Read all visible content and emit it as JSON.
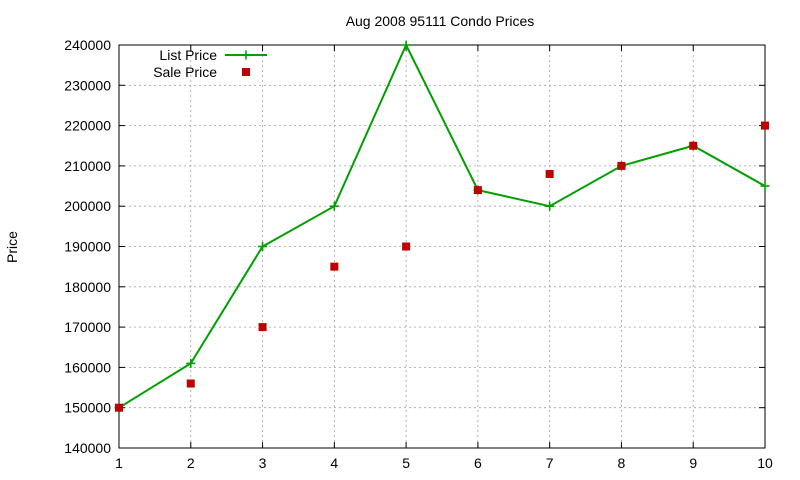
{
  "chart_data": {
    "type": "line",
    "title": "Aug 2008 95111 Condo Prices",
    "xlabel": "",
    "ylabel": "Price",
    "x": [
      1,
      2,
      3,
      4,
      5,
      6,
      7,
      8,
      9,
      10
    ],
    "xlim": [
      1,
      10
    ],
    "ylim": [
      140000,
      240000
    ],
    "xticks": [
      "1",
      "2",
      "3",
      "4",
      "5",
      "6",
      "7",
      "8",
      "9",
      "10"
    ],
    "yticks": [
      "140000",
      "150000",
      "160000",
      "170000",
      "180000",
      "190000",
      "200000",
      "210000",
      "220000",
      "230000",
      "240000"
    ],
    "grid": true,
    "legend_position": "top-left",
    "series": [
      {
        "name": "List Price",
        "style": "line-with-plus-markers",
        "color": "#00a000",
        "values": [
          150000,
          161000,
          190000,
          200000,
          240000,
          204000,
          200000,
          210000,
          215000,
          205000
        ]
      },
      {
        "name": "Sale Price",
        "style": "square-markers",
        "color": "#c00000",
        "values": [
          150000,
          156000,
          170000,
          185000,
          190000,
          204000,
          208000,
          210000,
          215000,
          220000
        ]
      }
    ]
  }
}
